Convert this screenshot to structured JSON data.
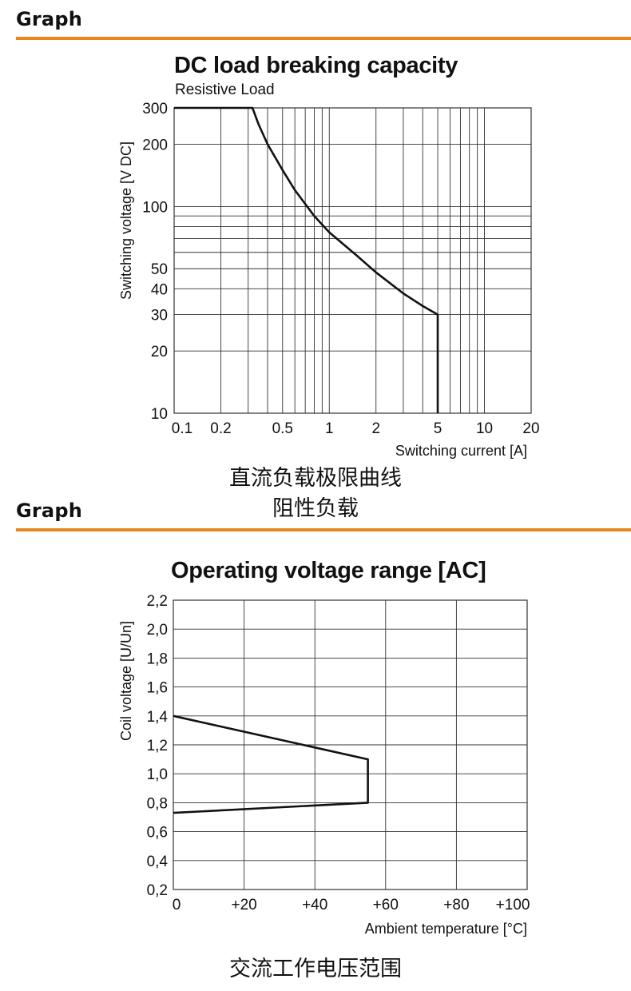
{
  "sections": [
    {
      "header": "Graph"
    },
    {
      "header": "Graph"
    }
  ],
  "captions": {
    "chart1_line1": "直流负载极限曲线",
    "chart1_line2": "阻性负载",
    "chart2": "交流工作电压范围"
  },
  "colors": {
    "accent_rule": "#e8871e",
    "line": "#111111",
    "grid": "#333333"
  },
  "chart_data": [
    {
      "type": "line",
      "title": "DC load breaking capacity",
      "subtitle": "Resistive Load",
      "xlabel": "Switching current [A]",
      "ylabel": "Switching voltage [V DC]",
      "x_scale": "log",
      "y_scale": "log",
      "xlim": [
        0.1,
        20
      ],
      "ylim": [
        10,
        300
      ],
      "x_ticks": [
        {
          "v": 0.1,
          "label": "0.1"
        },
        {
          "v": 0.2,
          "label": "0.2"
        },
        {
          "v": 0.5,
          "label": "0.5"
        },
        {
          "v": 1,
          "label": "1"
        },
        {
          "v": 2,
          "label": "2"
        },
        {
          "v": 5,
          "label": "5"
        },
        {
          "v": 10,
          "label": "10"
        },
        {
          "v": 20,
          "label": "20"
        }
      ],
      "y_ticks": [
        {
          "v": 10,
          "label": "10"
        },
        {
          "v": 20,
          "label": "20"
        },
        {
          "v": 30,
          "label": "30"
        },
        {
          "v": 40,
          "label": "40"
        },
        {
          "v": 50,
          "label": "50"
        },
        {
          "v": 100,
          "label": "100"
        },
        {
          "v": 200,
          "label": "200"
        },
        {
          "v": 300,
          "label": "300"
        }
      ],
      "x_grid": [
        0.2,
        0.3,
        0.4,
        0.5,
        0.6,
        0.7,
        0.8,
        0.9,
        1,
        2,
        3,
        4,
        5,
        6,
        7,
        8,
        9,
        10
      ],
      "y_grid": [
        20,
        30,
        40,
        50,
        60,
        70,
        80,
        90,
        100,
        200
      ],
      "series": [
        {
          "points": [
            [
              0.1,
              300
            ],
            [
              0.32,
              300
            ],
            [
              0.35,
              250
            ],
            [
              0.4,
              200
            ],
            [
              0.5,
              150
            ],
            [
              0.6,
              120
            ],
            [
              0.8,
              90
            ],
            [
              1,
              75
            ],
            [
              1.5,
              58
            ],
            [
              2,
              48
            ],
            [
              3,
              38
            ],
            [
              4,
              33
            ],
            [
              5,
              30
            ],
            [
              5,
              10
            ]
          ]
        }
      ],
      "grid": true
    },
    {
      "type": "line",
      "title": "Operating voltage range [AC]",
      "xlabel": "Ambient temperature [°C]",
      "ylabel": "Coil voltage [U/Un]",
      "xlim": [
        0,
        100
      ],
      "ylim": [
        0.2,
        2.2
      ],
      "x_ticks": [
        {
          "v": 0,
          "label": "0"
        },
        {
          "v": 20,
          "label": "+20"
        },
        {
          "v": 40,
          "label": "+40"
        },
        {
          "v": 60,
          "label": "+60"
        },
        {
          "v": 80,
          "label": "+80"
        },
        {
          "v": 100,
          "label": "+100"
        }
      ],
      "y_ticks": [
        {
          "v": 0.2,
          "label": "0,2"
        },
        {
          "v": 0.4,
          "label": "0,4"
        },
        {
          "v": 0.6,
          "label": "0,6"
        },
        {
          "v": 0.8,
          "label": "0,8"
        },
        {
          "v": 1.0,
          "label": "1,0"
        },
        {
          "v": 1.2,
          "label": "1,2"
        },
        {
          "v": 1.4,
          "label": "1,4"
        },
        {
          "v": 1.6,
          "label": "1,6"
        },
        {
          "v": 1.8,
          "label": "1,8"
        },
        {
          "v": 2.0,
          "label": "2,0"
        },
        {
          "v": 2.2,
          "label": "2,2"
        }
      ],
      "series": [
        {
          "points": [
            [
              0,
              1.4
            ],
            [
              55,
              1.1
            ],
            [
              55,
              0.8
            ],
            [
              0,
              0.73
            ]
          ]
        }
      ],
      "grid": true
    }
  ]
}
